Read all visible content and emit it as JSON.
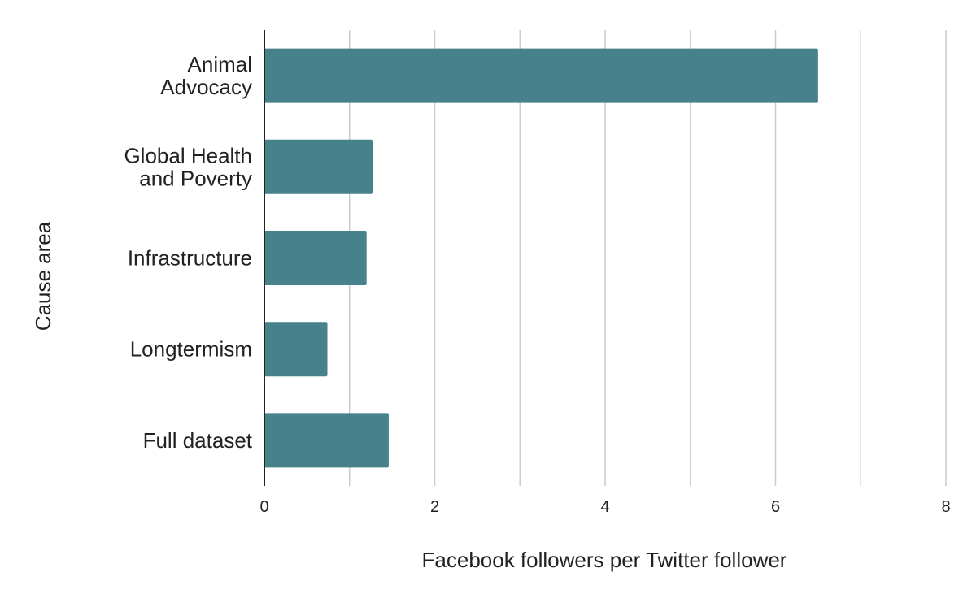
{
  "chart_data": {
    "type": "bar",
    "orientation": "horizontal",
    "title": "",
    "xlabel": "Facebook followers per Twitter follower",
    "ylabel": "Cause area",
    "categories": [
      [
        "Animal",
        "Advocacy"
      ],
      [
        "Global Health",
        "and Poverty"
      ],
      [
        "Infrastructure"
      ],
      [
        "Longtermism"
      ],
      [
        "Full dataset"
      ]
    ],
    "values": [
      6.5,
      1.27,
      1.2,
      0.74,
      1.46
    ],
    "xlim": [
      0,
      8
    ],
    "xticks": [
      "0",
      "2",
      "4",
      "6",
      "8"
    ],
    "grid": true,
    "legend": "none",
    "colors": {
      "bar": "#47818c",
      "grid": "#cccccc",
      "axis": "#222222"
    }
  }
}
